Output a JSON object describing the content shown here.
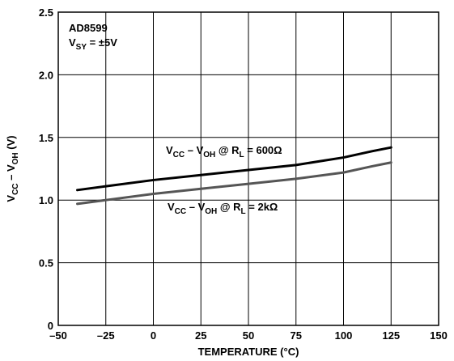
{
  "chart_data": {
    "type": "line",
    "xlabel": "TEMPERATURE (°C)",
    "ylabel": {
      "main": "V",
      "sub1": "CC",
      "mid": " – V",
      "sub2": "OH",
      "tail": " (V)"
    },
    "xlim": [
      -50,
      150
    ],
    "ylim": [
      0,
      2.5
    ],
    "xticks": [
      -50,
      -25,
      0,
      25,
      50,
      75,
      100,
      125,
      150
    ],
    "xtick_labels": [
      "–50",
      "–25",
      "0",
      "25",
      "50",
      "75",
      "100",
      "125",
      "150"
    ],
    "yticks": [
      0,
      0.5,
      1.0,
      1.5,
      2.0,
      2.5
    ],
    "ytick_labels": [
      "0",
      "0.5",
      "1.0",
      "1.5",
      "2.0",
      "2.5"
    ],
    "grid": true,
    "device_label": "AD8599",
    "supply_label": {
      "main": "V",
      "sub": "SY",
      "tail": " = ±5V"
    },
    "series": [
      {
        "label": {
          "v1": "V",
          "s1": "CC",
          "mid": " – V",
          "s2": "OH",
          "at": " @ R",
          "s3": "L",
          "tail": " = 600Ω"
        },
        "color": "#000000",
        "x": [
          -40,
          -25,
          0,
          25,
          50,
          75,
          100,
          115,
          125
        ],
        "y": [
          1.08,
          1.11,
          1.16,
          1.2,
          1.24,
          1.28,
          1.34,
          1.39,
          1.42
        ]
      },
      {
        "label": {
          "v1": "V",
          "s1": "CC",
          "mid": " – V",
          "s2": "OH",
          "at": " @ R",
          "s3": "L",
          "tail": " = 2kΩ"
        },
        "color": "#555555",
        "x": [
          -40,
          -25,
          0,
          25,
          50,
          75,
          100,
          115,
          125
        ],
        "y": [
          0.97,
          1.0,
          1.05,
          1.09,
          1.13,
          1.17,
          1.22,
          1.27,
          1.3
        ]
      }
    ]
  }
}
